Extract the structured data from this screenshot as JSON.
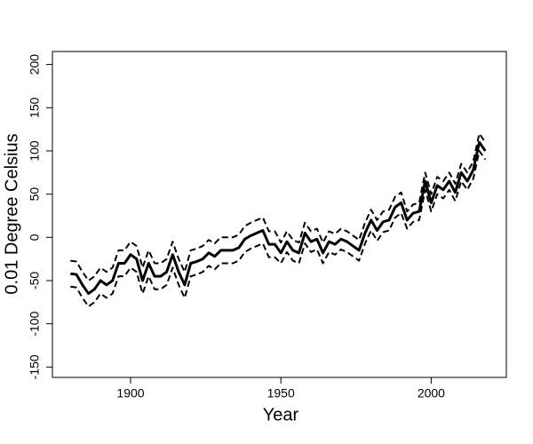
{
  "chart_data": {
    "type": "line",
    "xlabel": "Year",
    "ylabel": "0.01 Degree Celsius",
    "x": [
      1880,
      1882,
      1884,
      1886,
      1888,
      1890,
      1892,
      1894,
      1896,
      1898,
      1900,
      1902,
      1904,
      1906,
      1908,
      1910,
      1912,
      1914,
      1916,
      1918,
      1920,
      1922,
      1924,
      1926,
      1928,
      1930,
      1932,
      1934,
      1936,
      1938,
      1940,
      1942,
      1944,
      1946,
      1948,
      1950,
      1952,
      1954,
      1956,
      1958,
      1960,
      1962,
      1964,
      1966,
      1968,
      1970,
      1972,
      1974,
      1976,
      1978,
      1980,
      1982,
      1984,
      1986,
      1988,
      1990,
      1992,
      1994,
      1996,
      1998,
      2000,
      2002,
      2004,
      2006,
      2008,
      2010,
      2012,
      2014,
      2016,
      2018
    ],
    "series": [
      {
        "color": "#000000",
        "dashed": true,
        "values": [
          -57,
          -58,
          -70,
          -80,
          -75,
          -65,
          -70,
          -65,
          -45,
          -45,
          -35,
          -40,
          -65,
          -45,
          -60,
          -60,
          -55,
          -35,
          -55,
          -70,
          -45,
          -43,
          -40,
          -33,
          -37,
          -30,
          -30,
          -30,
          -27,
          -17,
          -13,
          -10,
          -7,
          -23,
          -23,
          -30,
          -17,
          -27,
          -30,
          -7,
          -17,
          -14,
          -30,
          -17,
          -20,
          -14,
          -17,
          -22,
          -27,
          -7,
          8,
          -4,
          6,
          8,
          23,
          28,
          10,
          18,
          20,
          55,
          30,
          50,
          45,
          55,
          42,
          65,
          55,
          68,
          100,
          90
        ]
      },
      {
        "color": "#000000",
        "dashed": false,
        "values": [
          -42,
          -43,
          -55,
          -65,
          -60,
          -50,
          -55,
          -50,
          -30,
          -30,
          -20,
          -25,
          -50,
          -30,
          -45,
          -45,
          -40,
          -20,
          -40,
          -55,
          -30,
          -28,
          -25,
          -18,
          -22,
          -15,
          -15,
          -15,
          -12,
          -2,
          2,
          5,
          8,
          -8,
          -8,
          -18,
          -5,
          -15,
          -18,
          5,
          -5,
          -2,
          -18,
          -5,
          -8,
          -2,
          -5,
          -10,
          -15,
          5,
          20,
          8,
          18,
          20,
          35,
          40,
          20,
          28,
          30,
          65,
          40,
          60,
          55,
          65,
          52,
          75,
          65,
          78,
          110,
          100
        ]
      },
      {
        "color": "#000000",
        "dashed": true,
        "values": [
          -27,
          -28,
          -40,
          -50,
          -45,
          -35,
          -40,
          -35,
          -15,
          -15,
          -5,
          -10,
          -35,
          -15,
          -30,
          -30,
          -25,
          -5,
          -25,
          -40,
          -15,
          -13,
          -10,
          -3,
          -7,
          0,
          0,
          0,
          3,
          13,
          17,
          20,
          23,
          7,
          7,
          -6,
          7,
          -3,
          -6,
          17,
          7,
          10,
          -6,
          7,
          4,
          10,
          7,
          2,
          -3,
          17,
          32,
          20,
          30,
          32,
          47,
          52,
          30,
          38,
          40,
          75,
          50,
          70,
          65,
          75,
          62,
          85,
          75,
          88,
          120,
          110
        ]
      }
    ],
    "xlim": [
      1874,
      2025
    ],
    "ylim": [
      -162,
      215
    ],
    "xticks": [
      1900,
      1950,
      2000
    ],
    "yticks": [
      -150,
      -100,
      -50,
      0,
      50,
      100,
      150,
      200
    ]
  }
}
